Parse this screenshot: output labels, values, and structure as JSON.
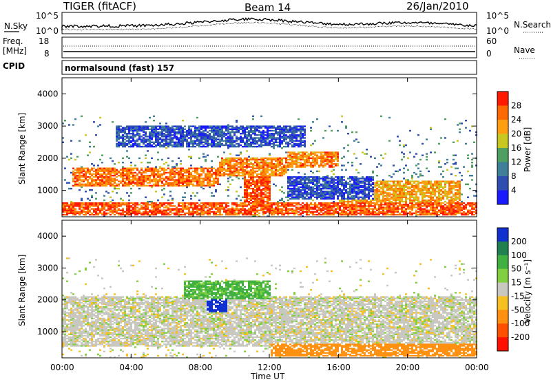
{
  "header": {
    "radar": "TIGER (fitACF)",
    "beam": "Beam 14",
    "date": "26/Jan/2010"
  },
  "summary": {
    "nsky_label": "N.Sky",
    "nsearch_label": "N.Search",
    "nsky_ticks": [
      "10^5",
      "10^0"
    ],
    "nsearch_ticks": [
      "10^5",
      "10^0"
    ],
    "freq_label_1": "Freq.",
    "freq_label_2": "[MHz]",
    "freq_ticks": [
      "18",
      "8"
    ],
    "nave_label": "Nave",
    "nave_ticks": [
      "60",
      "0"
    ],
    "cpid_label": "CPID",
    "cpid_value": "normalsound (fast) 157"
  },
  "time_axis": {
    "label": "Time UT",
    "ticks": [
      "00:00",
      "04:00",
      "08:00",
      "12:00",
      "16:00",
      "20:00",
      "00:00"
    ]
  },
  "range_axis": {
    "label": "Slant Range [km]",
    "ticks": [
      "1000",
      "2000",
      "3000",
      "4000"
    ]
  },
  "power_bar": {
    "label": "Power [dB]",
    "ticks": [
      "4",
      "8",
      "12",
      "16",
      "20",
      "24",
      "28"
    ],
    "colors": [
      "#1a1aff",
      "#2f4fb0",
      "#3f7f9a",
      "#4fa060",
      "#c8c820",
      "#ff9f10",
      "#ff6a00",
      "#ff1a00"
    ]
  },
  "velocity_bar": {
    "label": "Velocity [m s⁻¹]",
    "ticks": [
      "200",
      "100",
      "50",
      "15",
      "-15",
      "-50",
      "-100",
      "-200"
    ],
    "colors": [
      "#1030d0",
      "#208050",
      "#40b040",
      "#80d040",
      "#c8c8c0",
      "#f5c020",
      "#ff9010",
      "#ff5000",
      "#ff1000"
    ]
  },
  "chart_data": [
    {
      "type": "heatmap",
      "title": "Power",
      "x_range_hours": [
        0,
        24
      ],
      "ylim_km": [
        180,
        4500
      ],
      "colorbar_range_db": [
        0,
        32
      ],
      "features": [
        {
          "t0": 0,
          "t1": 24,
          "r0": 200,
          "r1": 600,
          "level": 27
        },
        {
          "t0": 0.5,
          "t1": 9,
          "r0": 1100,
          "r1": 1700,
          "level": 25
        },
        {
          "t0": 9,
          "t1": 13,
          "r0": 1400,
          "r1": 2000,
          "level": 24
        },
        {
          "t0": 13,
          "t1": 16,
          "r0": 1700,
          "r1": 2200,
          "level": 24
        },
        {
          "t0": 10.5,
          "t1": 12,
          "r0": 600,
          "r1": 1400,
          "level": 28
        },
        {
          "t0": 16,
          "t1": 23,
          "r0": 600,
          "r1": 1300,
          "level": 22
        },
        {
          "t0": 3,
          "t1": 14,
          "r0": 2300,
          "r1": 3000,
          "level": 6
        },
        {
          "t0": 13,
          "t1": 18,
          "r0": 700,
          "r1": 1400,
          "level": 6
        }
      ]
    },
    {
      "type": "heatmap",
      "title": "Velocity",
      "x_range_hours": [
        0,
        24
      ],
      "ylim_km": [
        180,
        4500
      ],
      "colorbar_range_ms": [
        -250,
        250
      ],
      "features": [
        {
          "t0": 0,
          "t1": 24,
          "r0": 500,
          "r1": 2100,
          "level": 0
        },
        {
          "t0": 8.3,
          "t1": 9.5,
          "r0": 1600,
          "r1": 2000,
          "level": 220
        },
        {
          "t0": 7,
          "t1": 12,
          "r0": 2000,
          "r1": 2600,
          "level": 60
        },
        {
          "t0": 12,
          "t1": 24,
          "r0": 200,
          "r1": 600,
          "level": -70
        }
      ]
    }
  ]
}
